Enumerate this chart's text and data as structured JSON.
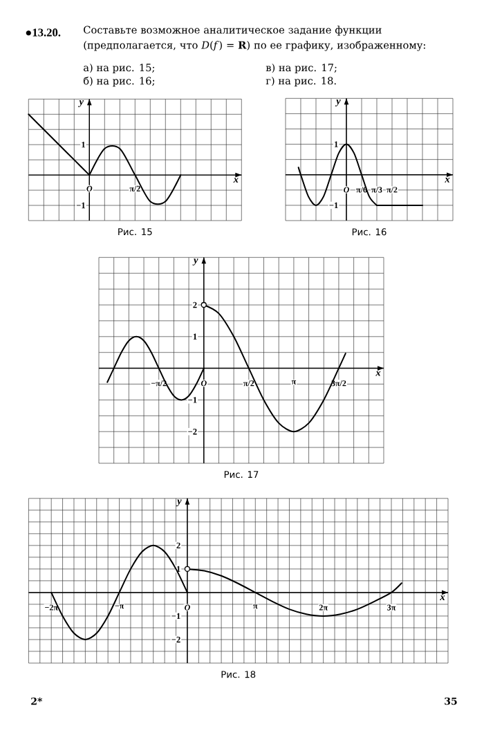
{
  "chart_data": [
    {
      "type": "other",
      "title": "Составьте возможное аналитическое задание функции (предполагается, что *D*(*f*) = **R**) по ее графику, изображенному:",
      "annotations": [
        "●13.20.",
        "а) на рис. 15;",
        "в) на рис. 17;",
        "б) на рис. 16;",
        "г) на рис. 18."
      ]
    },
    {
      "type": "line",
      "xlabel": "x",
      "ylabel": "y",
      "annotations": [
        "Рис. 15"
      ],
      "grid": true,
      "categories": [
        null,
        null,
        null,
        null,
        "O",
        null,
        null,
        "π/2",
        null,
        null,
        null,
        null,
        null,
        null,
        null
      ],
      "ylim": [
        -1.5,
        2.5
      ],
      "yticks": [
        {
          "value": -1.5,
          "label": null
        },
        {
          "value": -1,
          "label": "−1"
        },
        {
          "value": -0.5,
          "label": null
        },
        {
          "value": 0,
          "label": null
        },
        {
          "value": 0.5,
          "label": null
        },
        1,
        {
          "value": 1.5,
          "label": null
        },
        {
          "value": 2,
          "label": null
        },
        {
          "value": 2.5,
          "label": null
        }
      ],
      "series": [
        {
          "color": "#000000",
          "values": [
            2,
            1.5,
            1,
            0.5,
            0,
            null,
            null,
            null,
            null,
            null,
            null,
            null,
            null,
            null,
            null
          ]
        },
        {
          "color": "#000000",
          "values": [
            null,
            null,
            null,
            null,
            0,
            0.87,
            0.87,
            0,
            -0.87,
            -0.87,
            0,
            null,
            null,
            null,
            null
          ]
        }
      ]
    },
    {
      "type": "line",
      "xlabel": "x",
      "ylabel": "y",
      "annotations": [
        "Рис. 16"
      ],
      "grid": true,
      "xlim": [
        -2.094,
        3.665
      ],
      "ylim": [
        -1.5,
        2.5
      ],
      "xticks": [
        {
          "value": -2.094,
          "label": null
        },
        {
          "value": -1.571,
          "label": null
        },
        {
          "value": -1.047,
          "label": null
        },
        {
          "value": -0.524,
          "label": null
        },
        {
          "value": 0,
          "label": "O"
        },
        {
          "value": 0.524,
          "label": "π/6"
        },
        {
          "value": 1.047,
          "label": "π/3"
        },
        {
          "value": 1.571,
          "label": "π/2"
        },
        {
          "value": 2.094,
          "label": null
        },
        {
          "value": 2.618,
          "label": null
        },
        {
          "value": 3.142,
          "label": null
        },
        {
          "value": 3.665,
          "label": null
        }
      ],
      "yticks": [
        {
          "value": -1.5,
          "label": null
        },
        {
          "value": -1,
          "label": "−1"
        },
        {
          "value": -0.5,
          "label": null
        },
        {
          "value": 0,
          "label": null
        },
        {
          "value": 0.5,
          "label": null
        },
        1,
        {
          "value": 1.5,
          "label": null
        },
        {
          "value": 2,
          "label": null
        },
        {
          "value": 2.5,
          "label": null
        }
      ],
      "series": [
        {
          "color": "#000000",
          "x": [
            -1.65,
            -1.571,
            -1.309,
            -1.047,
            -0.785,
            -0.524,
            -0.262,
            0,
            0.262,
            0.524,
            0.785,
            1.047
          ],
          "values": [
            0.24,
            0,
            -0.71,
            -1,
            -0.71,
            0,
            0.71,
            1,
            0.71,
            0,
            -0.71,
            -1
          ]
        },
        {
          "color": "#000000",
          "x": [
            1.047,
            2.618
          ],
          "values": [
            -1,
            -1
          ]
        }
      ]
    },
    {
      "type": "line",
      "xlabel": "x",
      "ylabel": "y",
      "annotations": [
        "Рис. 17"
      ],
      "grid": true,
      "xlim": [
        -3.665,
        6.283
      ],
      "ylim": [
        -3,
        3.5
      ],
      "xticks": [
        {
          "value": -3.665,
          "label": null
        },
        {
          "value": -3.142,
          "label": null
        },
        {
          "value": -2.618,
          "label": null
        },
        {
          "value": -2.094,
          "label": null
        },
        {
          "value": -1.571,
          "label": "−π/2"
        },
        {
          "value": -1.047,
          "label": null
        },
        {
          "value": -0.524,
          "label": null
        },
        {
          "value": 0,
          "label": "O"
        },
        {
          "value": 0.524,
          "label": null
        },
        {
          "value": 1.047,
          "label": null
        },
        {
          "value": 1.571,
          "label": "π/2"
        },
        {
          "value": 2.094,
          "label": null
        },
        {
          "value": 2.618,
          "label": null
        },
        {
          "value": 3.142,
          "label": "π"
        },
        {
          "value": 3.665,
          "label": null
        },
        {
          "value": 4.189,
          "label": null
        },
        {
          "value": 4.712,
          "label": "3π/2"
        },
        {
          "value": 5.236,
          "label": null
        },
        {
          "value": 5.76,
          "label": null
        },
        {
          "value": 6.283,
          "label": null
        }
      ],
      "yticks": [
        {
          "value": -3,
          "label": null
        },
        {
          "value": -2.5,
          "label": null
        },
        {
          "value": -2,
          "label": "−2"
        },
        {
          "value": -1.5,
          "label": null
        },
        {
          "value": -1,
          "label": "−1"
        },
        {
          "value": -0.5,
          "label": null
        },
        {
          "value": 0,
          "label": null
        },
        {
          "value": 0.5,
          "label": null
        },
        1,
        {
          "value": 1.5,
          "label": null
        },
        2,
        {
          "value": 2.5,
          "label": null
        },
        {
          "value": 3,
          "label": null
        },
        {
          "value": 3.5,
          "label": null
        }
      ],
      "series": [
        {
          "color": "#000000",
          "x": [
            -3.37,
            -3.142,
            -2.88,
            -2.618,
            -2.356,
            -2.094,
            -1.833,
            -1.571,
            -1.309,
            -1.047,
            -0.785,
            -0.524,
            -0.262,
            0
          ],
          "values": [
            -0.44,
            0,
            0.5,
            0.87,
            1,
            0.87,
            0.5,
            0,
            -0.5,
            -0.87,
            -1,
            -0.87,
            -0.5,
            0
          ]
        },
        {
          "color": "#000000",
          "x": [
            0,
            0.524,
            1.047,
            1.571,
            2.094,
            2.618,
            3.142,
            3.665,
            4.189,
            4.712,
            4.95
          ],
          "values": [
            2,
            1.73,
            1,
            0,
            -1,
            -1.73,
            -2,
            -1.73,
            -1,
            0,
            0.47
          ]
        },
        {
          "type": "scatter",
          "marker": "circle",
          "color": "#000000",
          "x": [
            0
          ],
          "values": [
            2
          ]
        }
      ]
    },
    {
      "type": "line",
      "xlabel": "x",
      "ylabel": "y",
      "annotations": [
        "Рис. 18"
      ],
      "grid": true,
      "xlim": [
        -7.33,
        12.043
      ],
      "ylim": [
        -3,
        4
      ],
      "xticks": [
        {
          "value": -7.33,
          "label": null
        },
        {
          "value": -6.807,
          "label": null
        },
        {
          "value": -6.283,
          "label": "−2π"
        },
        {
          "value": -5.76,
          "label": null
        },
        {
          "value": -5.236,
          "label": null
        },
        {
          "value": -4.712,
          "label": null
        },
        {
          "value": -4.189,
          "label": null
        },
        {
          "value": -3.665,
          "label": null
        },
        {
          "value": -3.142,
          "label": "−π"
        },
        {
          "value": -2.618,
          "label": null
        },
        {
          "value": -2.094,
          "label": null
        },
        {
          "value": -1.571,
          "label": null
        },
        {
          "value": -1.047,
          "label": null
        },
        {
          "value": -0.524,
          "label": null
        },
        {
          "value": 0,
          "label": "O"
        },
        {
          "value": 0.524,
          "label": null
        },
        {
          "value": 1.047,
          "label": null
        },
        {
          "value": 1.571,
          "label": null
        },
        {
          "value": 2.094,
          "label": null
        },
        {
          "value": 2.618,
          "label": null
        },
        {
          "value": 3.142,
          "label": "π"
        },
        {
          "value": 3.665,
          "label": null
        },
        {
          "value": 4.189,
          "label": null
        },
        {
          "value": 4.712,
          "label": null
        },
        {
          "value": 5.236,
          "label": null
        },
        {
          "value": 5.76,
          "label": null
        },
        {
          "value": 6.283,
          "label": "2π"
        },
        {
          "value": 6.807,
          "label": null
        },
        {
          "value": 7.33,
          "label": null
        },
        {
          "value": 7.854,
          "label": null
        },
        {
          "value": 8.378,
          "label": null
        },
        {
          "value": 8.901,
          "label": null
        },
        {
          "value": 9.425,
          "label": "3π"
        },
        {
          "value": 9.948,
          "label": null
        },
        {
          "value": 10.472,
          "label": null
        },
        {
          "value": 10.996,
          "label": null
        },
        {
          "value": 11.519,
          "label": null
        },
        {
          "value": 12.043,
          "label": null
        }
      ],
      "yticks": [
        {
          "value": -3,
          "label": null
        },
        {
          "value": -2.5,
          "label": null
        },
        {
          "value": -2,
          "label": "−2"
        },
        {
          "value": -1.5,
          "label": null
        },
        {
          "value": -1,
          "label": "−1"
        },
        {
          "value": -0.5,
          "label": null
        },
        {
          "value": 0,
          "label": null
        },
        {
          "value": 0.5,
          "label": null
        },
        1,
        {
          "value": 1.5,
          "label": null
        },
        2,
        {
          "value": 2.5,
          "label": null
        },
        {
          "value": 3,
          "label": null
        },
        {
          "value": 3.5,
          "label": null
        },
        {
          "value": 4,
          "label": null
        }
      ],
      "series": [
        {
          "color": "#000000",
          "x": [
            -6.283,
            -5.76,
            -5.236,
            -4.712,
            -4.189,
            -3.665,
            -3.142,
            -2.618,
            -2.094,
            -1.571,
            -1.047,
            -0.524,
            0
          ],
          "values": [
            0,
            -1,
            -1.73,
            -2,
            -1.73,
            -1,
            0,
            1,
            1.73,
            2,
            1.73,
            1,
            0
          ]
        },
        {
          "color": "#000000",
          "x": [
            0,
            0.785,
            1.571,
            2.356,
            3.142,
            3.927,
            4.712,
            5.498,
            6.283,
            7.069,
            7.854,
            8.639,
            9.425,
            9.9
          ],
          "values": [
            1,
            0.92,
            0.71,
            0.38,
            0,
            -0.38,
            -0.71,
            -0.92,
            -1,
            -0.92,
            -0.71,
            -0.38,
            0,
            0.4
          ]
        },
        {
          "type": "scatter",
          "marker": "circle",
          "color": "#000000",
          "x": [
            0
          ],
          "values": [
            1
          ]
        }
      ]
    },
    {
      "type": "other",
      "annotations": [
        "2*",
        "35"
      ]
    }
  ]
}
